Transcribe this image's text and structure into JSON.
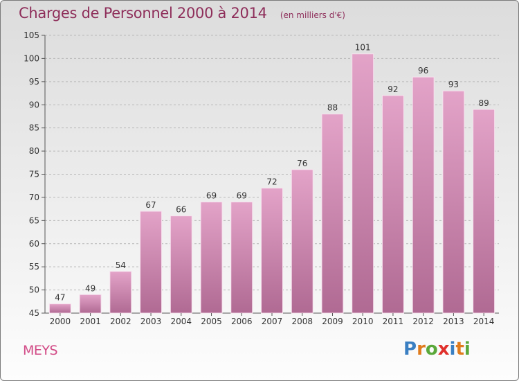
{
  "chart_data": {
    "type": "bar",
    "title": "Charges de Personnel 2000 à 2014",
    "subtitle": "(en milliers d'€)",
    "categories": [
      "2000",
      "2001",
      "2002",
      "2003",
      "2004",
      "2005",
      "2006",
      "2007",
      "2008",
      "2009",
      "2010",
      "2011",
      "2012",
      "2013",
      "2014"
    ],
    "values": [
      47,
      49,
      54,
      67,
      66,
      69,
      69,
      72,
      76,
      88,
      101,
      92,
      96,
      93,
      89
    ],
    "ylim": [
      45,
      105
    ],
    "yticks": [
      45,
      50,
      55,
      60,
      65,
      70,
      75,
      80,
      85,
      90,
      95,
      100,
      105
    ],
    "grid": "horizontal dashed",
    "colors": {
      "bar_top": "#e3a3c8",
      "bar_bottom": "#b06a93",
      "title": "#8e2e5a"
    }
  },
  "commune": "MEYS",
  "brand": {
    "letters": [
      "P",
      "r",
      "o",
      "x",
      "i",
      "t",
      "i"
    ],
    "colors": [
      "#3a7fc2",
      "#e07b1c",
      "#5aa83a",
      "#e0302b",
      "#3a7fc2",
      "#e07b1c",
      "#5aa83a"
    ]
  }
}
